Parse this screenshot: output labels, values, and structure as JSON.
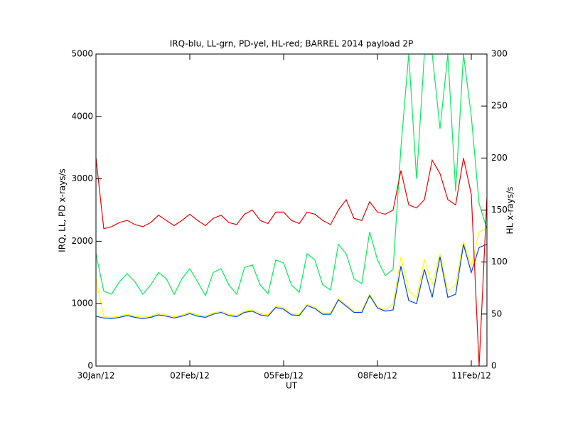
{
  "chart_data": {
    "type": "line",
    "title": "IRQ-blu, LL-grn, PD-yel, HL-red; BARREL 2014 payload 2P",
    "x_label": "UT",
    "y_label": "IRQ, LL, PD x-rays/s",
    "y2_label": "HL x-rays/s",
    "x": [
      0,
      0.25,
      0.5,
      0.75,
      1,
      1.25,
      1.5,
      1.75,
      2,
      2.25,
      2.5,
      2.75,
      3,
      3.25,
      3.5,
      3.75,
      4,
      4.25,
      4.5,
      4.75,
      5,
      5.25,
      5.5,
      5.75,
      6,
      6.25,
      6.5,
      6.75,
      7,
      7.25,
      7.5,
      7.75,
      8,
      8.25,
      8.5,
      8.75,
      9,
      9.25,
      9.5,
      9.75,
      10,
      10.25,
      10.5,
      10.75,
      11,
      11.25,
      11.5,
      11.75,
      12,
      12.25,
      12.5
    ],
    "xlim": [
      0,
      12.5
    ],
    "xticks": [
      {
        "value": 0,
        "label": "30Jan/12"
      },
      {
        "value": 3,
        "label": "02Feb/12"
      },
      {
        "value": 6,
        "label": "05Feb/12"
      },
      {
        "value": 9,
        "label": "08Feb/12"
      },
      {
        "value": 12,
        "label": "11Feb/12"
      }
    ],
    "ylim": [
      0,
      5000
    ],
    "yticks": [
      0,
      1000,
      2000,
      3000,
      4000,
      5000
    ],
    "y2lim": [
      0,
      300
    ],
    "y2ticks": [
      0,
      50,
      100,
      150,
      200,
      250,
      300
    ],
    "series": [
      {
        "name": "LL",
        "color": "#00ee55",
        "values": [
          1800,
          1200,
          1150,
          1350,
          1480,
          1350,
          1150,
          1300,
          1500,
          1400,
          1150,
          1400,
          1560,
          1350,
          1130,
          1500,
          1560,
          1300,
          1150,
          1580,
          1620,
          1300,
          1160,
          1700,
          1650,
          1300,
          1180,
          1800,
          1700,
          1300,
          1220,
          1950,
          1800,
          1400,
          1320,
          2150,
          1700,
          1450,
          1550,
          3500,
          5000,
          3000,
          5000,
          5000,
          3800,
          5000,
          2800,
          5000,
          4000,
          2600,
          2200
        ]
      },
      {
        "name": "PD",
        "color": "#ffff00",
        "values": [
          1400,
          790,
          780,
          800,
          830,
          800,
          780,
          800,
          840,
          820,
          790,
          820,
          860,
          820,
          800,
          850,
          880,
          830,
          810,
          880,
          900,
          840,
          820,
          960,
          930,
          840,
          830,
          990,
          940,
          850,
          850,
          1080,
          980,
          880,
          880,
          1150,
          950,
          900,
          1000,
          1750,
          1200,
          1100,
          1700,
          1300,
          1800,
          1200,
          1300,
          2000,
          1600,
          2150,
          2200
        ]
      },
      {
        "name": "IRQ",
        "color": "#0044dd",
        "values": [
          800,
          770,
          760,
          780,
          810,
          780,
          760,
          780,
          820,
          800,
          770,
          800,
          840,
          800,
          780,
          830,
          860,
          810,
          790,
          860,
          880,
          820,
          800,
          940,
          910,
          820,
          810,
          970,
          920,
          830,
          830,
          1060,
          960,
          860,
          860,
          1130,
          930,
          880,
          900,
          1600,
          1050,
          1000,
          1550,
          1100,
          1750,
          1100,
          1150,
          1950,
          1500,
          1900,
          1950
        ]
      },
      {
        "name": "HL",
        "color": "#ee0000",
        "axis": "y2",
        "values": [
          200,
          132,
          134,
          138,
          140,
          136,
          134,
          138,
          145,
          140,
          135,
          140,
          146,
          140,
          135,
          142,
          145,
          138,
          136,
          146,
          150,
          140,
          137,
          148,
          148,
          140,
          137,
          148,
          146,
          140,
          136,
          150,
          160,
          142,
          140,
          158,
          148,
          146,
          150,
          188,
          155,
          152,
          160,
          198,
          185,
          160,
          155,
          200,
          165,
          0,
          162
        ]
      }
    ]
  }
}
